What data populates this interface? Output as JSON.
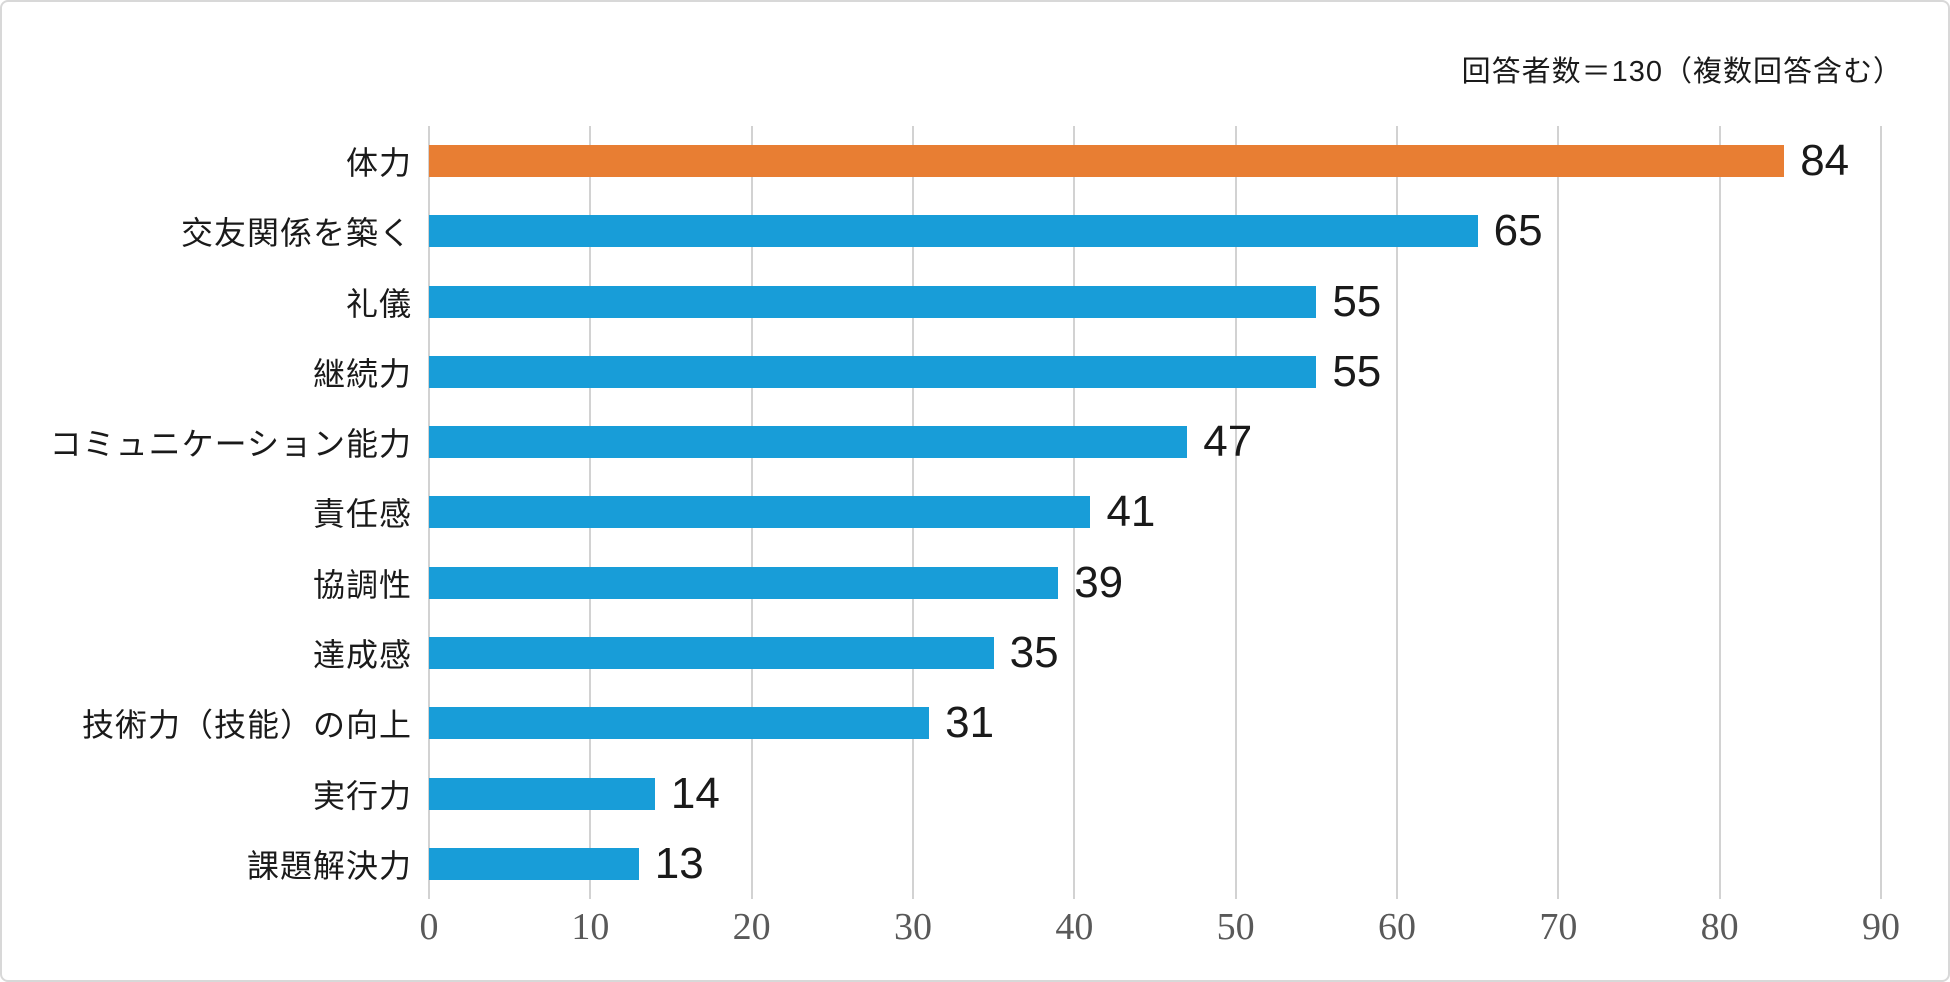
{
  "annotation": "回答者数＝130（複数回答含む）",
  "colors": {
    "bar_default": "#189dd8",
    "bar_highlight": "#e87e33",
    "gridline": "#d2d2d2",
    "tick_label": "#595959",
    "text": "#1a1a1a",
    "frame_border": "#d8d8d8"
  },
  "chart_data": {
    "type": "bar",
    "orientation": "horizontal",
    "title": "",
    "xlabel": "",
    "ylabel": "",
    "annotation": "回答者数＝130（複数回答含む）",
    "categories": [
      "体力",
      "交友関係を築く",
      "礼儀",
      "継続力",
      "コミュニケーション能力",
      "責任感",
      "協調性",
      "達成感",
      "技術力（技能）の向上",
      "実行力",
      "課題解決力"
    ],
    "values": [
      84,
      65,
      55,
      55,
      47,
      41,
      39,
      35,
      31,
      14,
      13
    ],
    "highlight_index": 0,
    "value_labels_shown": true,
    "xlim": [
      0,
      90
    ],
    "xticks": [
      0,
      10,
      20,
      30,
      40,
      50,
      60,
      70,
      80,
      90
    ],
    "grid": "vertical-only",
    "legend": "none"
  }
}
